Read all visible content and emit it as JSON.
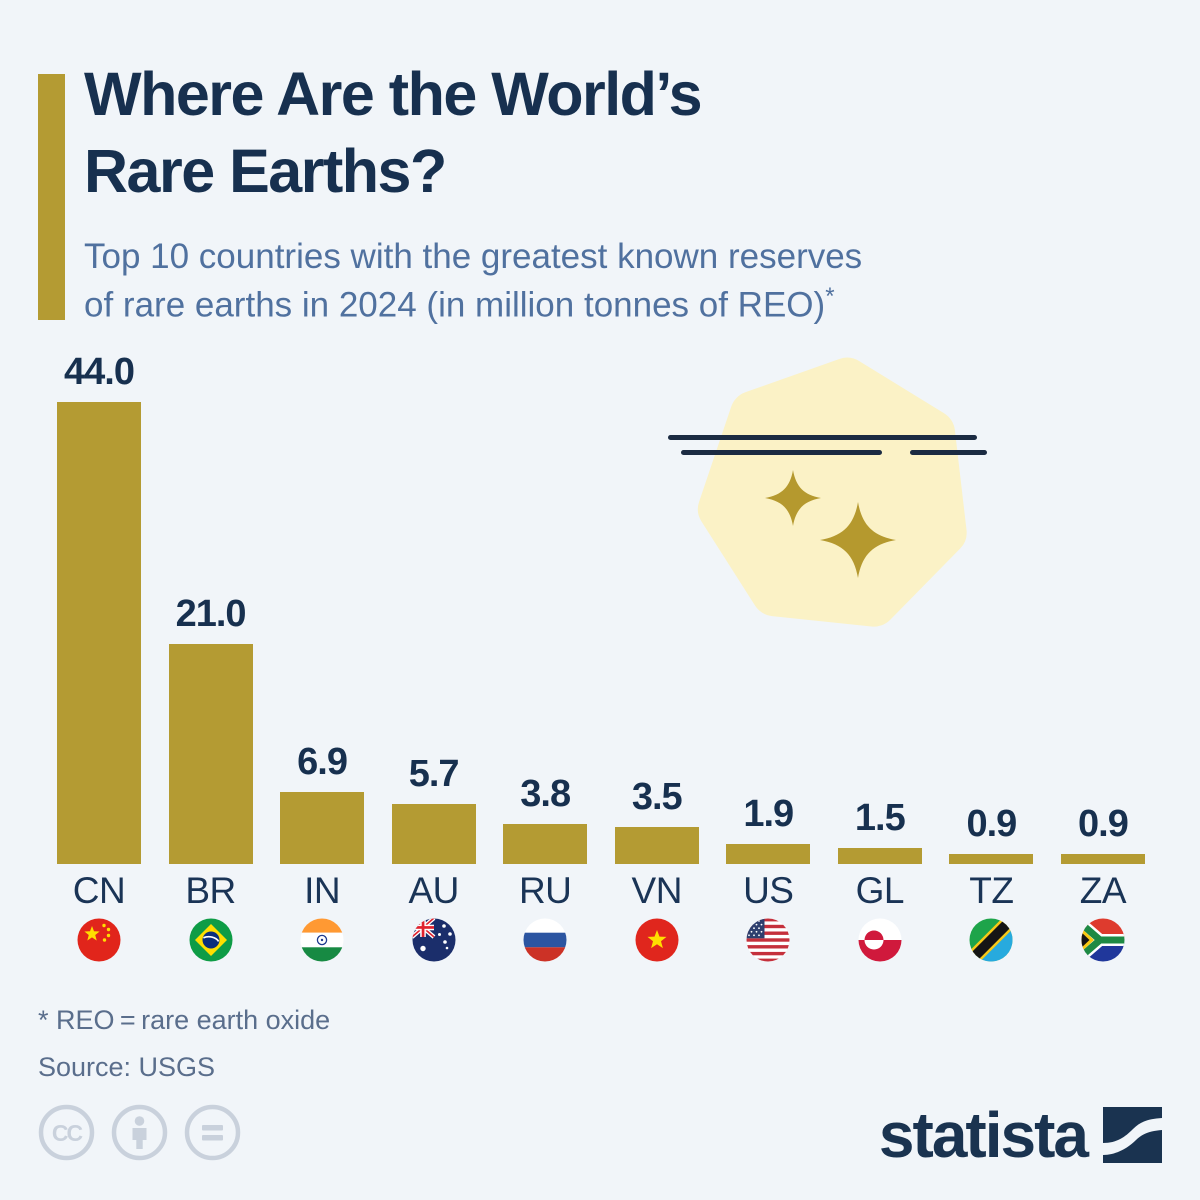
{
  "header": {
    "title_line1": "Where Are the World’s",
    "title_line2": "Rare Earths?",
    "subtitle_line1": "Top 10 countries with the greatest known reserves",
    "subtitle_line2": "of rare earths in 2024 (in million tonnes of REO)",
    "subtitle_mark": "*"
  },
  "chart_data": {
    "type": "bar",
    "title": "Top 10 countries with the greatest known reserves of rare earths in 2024 (in million tonnes of REO)",
    "unit": "million tonnes of REO",
    "categories": [
      "CN",
      "BR",
      "IN",
      "AU",
      "RU",
      "VN",
      "US",
      "GL",
      "TZ",
      "ZA"
    ],
    "values": [
      44.0,
      21.0,
      6.9,
      5.7,
      3.8,
      3.5,
      1.9,
      1.5,
      0.9,
      0.9
    ],
    "value_labels": [
      "44.0",
      "21.0",
      "6.9",
      "5.7",
      "3.8",
      "3.5",
      "1.9",
      "1.5",
      "0.9",
      "0.9"
    ],
    "flag_icons": [
      "china-flag",
      "brazil-flag",
      "india-flag",
      "australia-flag",
      "russia-flag",
      "vietnam-flag",
      "united-states-flag",
      "greenland-flag",
      "tanzania-flag",
      "south-africa-flag"
    ],
    "bar_color": "#B49B33",
    "ylim": [
      0,
      44
    ],
    "grid": false,
    "legend": false
  },
  "footnotes": {
    "definition": "* REO = rare earth oxide",
    "source": "Source: USGS"
  },
  "footer": {
    "brand": "statista",
    "license_icons": [
      "cc-icon",
      "attribution-person-icon",
      "no-derivatives-equals-icon"
    ]
  },
  "colors": {
    "background": "#F1F5F9",
    "accent_gold": "#B49B33",
    "title_navy": "#17304F",
    "subtitle_blue": "#50719F",
    "footnote_gray_blue": "#5A6E8C",
    "gem_blob": "#FBF2C6",
    "sparkle_gold": "#B5992E",
    "decor_line_navy": "#1B2B42",
    "license_icon_gray": "#C9D1DC",
    "brand_navy": "#1A3350"
  }
}
